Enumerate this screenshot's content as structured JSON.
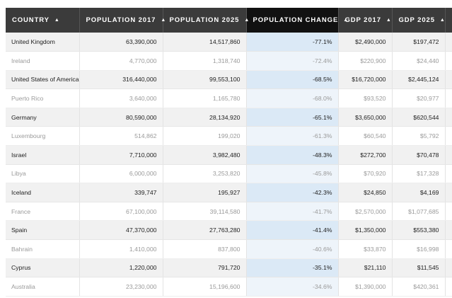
{
  "table": {
    "columns": [
      {
        "label": "COUNTRY",
        "sort_icon": "caret-up-icon"
      },
      {
        "label": "POPULATION 2017",
        "sort_icon": "caret-up-icon"
      },
      {
        "label": "POPULATION 2025",
        "sort_icon": "caret-up-icon"
      },
      {
        "label": "POPULATION CHANGE",
        "sort_icon": "caret-up-icon",
        "sorted": true
      },
      {
        "label": "GDP 2017",
        "sort_icon": "caret-up-icon"
      },
      {
        "label": "GDP 2025",
        "sort_icon": "caret-up-icon"
      }
    ],
    "arrow_glyph": "▲",
    "rows": [
      {
        "country": "United Kingdom",
        "pop2017": "63,390,000",
        "pop2025": "14,517,860",
        "change": "-77.1%",
        "gdp2017": "$2,490,000",
        "gdp2025": "$197,472"
      },
      {
        "country": "Ireland",
        "pop2017": "4,770,000",
        "pop2025": "1,318,740",
        "change": "-72.4%",
        "gdp2017": "$220,900",
        "gdp2025": "$24,440"
      },
      {
        "country": "United States of America",
        "pop2017": "316,440,000",
        "pop2025": "99,553,100",
        "change": "-68.5%",
        "gdp2017": "$16,720,000",
        "gdp2025": "$2,445,124"
      },
      {
        "country": "Puerto Rico",
        "pop2017": "3,640,000",
        "pop2025": "1,165,780",
        "change": "-68.0%",
        "gdp2017": "$93,520",
        "gdp2025": "$20,977"
      },
      {
        "country": "Germany",
        "pop2017": "80,590,000",
        "pop2025": "28,134,920",
        "change": "-65.1%",
        "gdp2017": "$3,650,000",
        "gdp2025": "$620,544"
      },
      {
        "country": "Luxembourg",
        "pop2017": "514,862",
        "pop2025": "199,020",
        "change": "-61.3%",
        "gdp2017": "$60,540",
        "gdp2025": "$5,792"
      },
      {
        "country": "Israel",
        "pop2017": "7,710,000",
        "pop2025": "3,982,480",
        "change": "-48.3%",
        "gdp2017": "$272,700",
        "gdp2025": "$70,478"
      },
      {
        "country": "Libya",
        "pop2017": "6,000,000",
        "pop2025": "3,253,820",
        "change": "-45.8%",
        "gdp2017": "$70,920",
        "gdp2025": "$17,328"
      },
      {
        "country": "Iceland",
        "pop2017": "339,747",
        "pop2025": "195,927",
        "change": "-42.3%",
        "gdp2017": "$24,850",
        "gdp2025": "$4,169"
      },
      {
        "country": "France",
        "pop2017": "67,100,000",
        "pop2025": "39,114,580",
        "change": "-41.7%",
        "gdp2017": "$2,570,000",
        "gdp2025": "$1,077,685"
      },
      {
        "country": "Spain",
        "pop2017": "47,370,000",
        "pop2025": "27,763,280",
        "change": "-41.4%",
        "gdp2017": "$1,350,000",
        "gdp2025": "$553,380"
      },
      {
        "country": "Bahrain",
        "pop2017": "1,410,000",
        "pop2025": "837,800",
        "change": "-40.6%",
        "gdp2017": "$33,870",
        "gdp2025": "$16,998"
      },
      {
        "country": "Cyprus",
        "pop2017": "1,220,000",
        "pop2025": "791,720",
        "change": "-35.1%",
        "gdp2017": "$21,110",
        "gdp2025": "$11,545"
      },
      {
        "country": "Australia",
        "pop2017": "23,230,000",
        "pop2025": "15,196,600",
        "change": "-34.6%",
        "gdp2017": "$1,390,000",
        "gdp2025": "$420,361"
      }
    ]
  }
}
